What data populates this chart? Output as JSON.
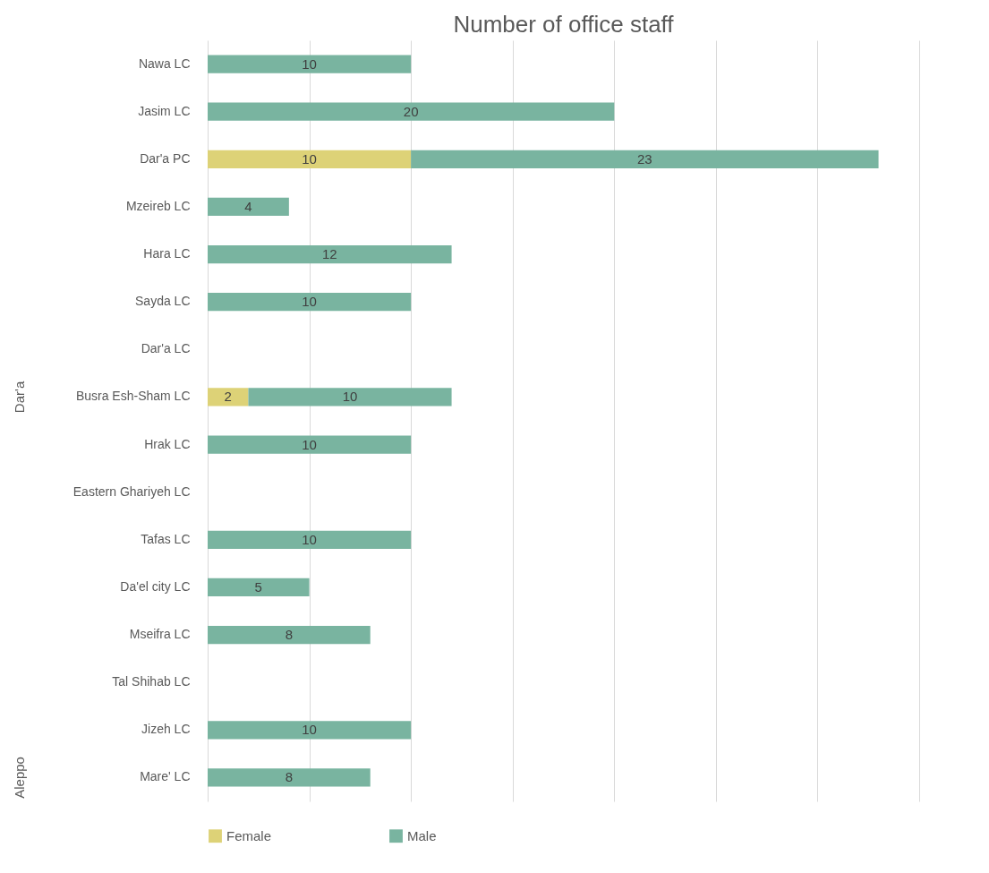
{
  "chart_data": {
    "type": "bar",
    "orientation": "horizontal",
    "stacked": true,
    "title": "Number of office staff",
    "categories": [
      "Nawa LC",
      "Jasim LC",
      "Dar'a PC",
      "Mzeireb LC",
      "Hara LC",
      "Sayda LC",
      "Dar'a LC",
      "Busra Esh-Sham LC",
      "Hrak LC",
      "Eastern Ghariyeh LC",
      "Tafas LC",
      "Da'el city LC",
      "Mseifra LC",
      "Tal Shihab LC",
      "Jizeh LC",
      "Mare' LC"
    ],
    "series": [
      {
        "name": "Female",
        "color": "#ddd277",
        "values": [
          null,
          null,
          10,
          null,
          null,
          null,
          null,
          2,
          null,
          null,
          null,
          null,
          null,
          null,
          null,
          null
        ]
      },
      {
        "name": "Male",
        "color": "#79b4a0",
        "values": [
          10,
          20,
          23,
          4,
          12,
          10,
          null,
          10,
          10,
          null,
          10,
          5,
          8,
          null,
          10,
          8
        ]
      }
    ],
    "xlim": [
      0,
      35
    ],
    "xticks": [
      {
        "value": 0,
        "label": null
      },
      {
        "value": 5,
        "label": null
      },
      {
        "value": 10,
        "label": null
      },
      {
        "value": 15,
        "label": null
      },
      {
        "value": 20,
        "label": null
      },
      {
        "value": 25,
        "label": null
      },
      {
        "value": 30,
        "label": null
      },
      {
        "value": 35,
        "label": null
      }
    ],
    "grid": "x",
    "legend": "bottom",
    "data_labels": true,
    "annotations": [
      "Dar'a",
      "Aleppo"
    ]
  }
}
